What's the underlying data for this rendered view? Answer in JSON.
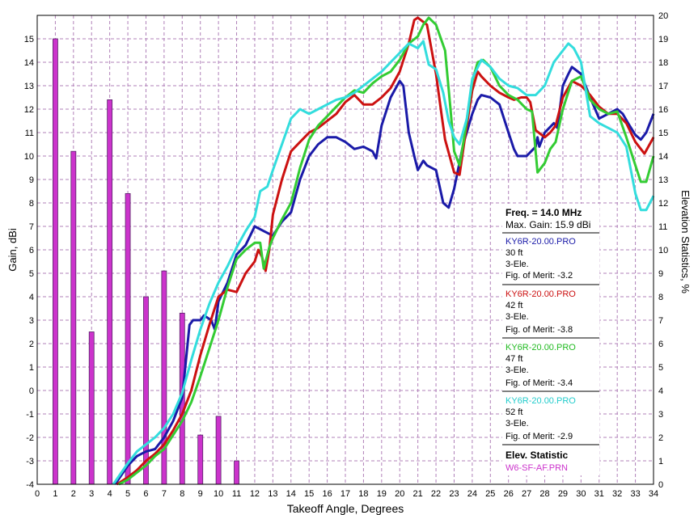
{
  "chart_data": {
    "type": "line",
    "xlabel": "Takeoff Angle, Degrees",
    "ylabel": "Gain, dBi",
    "y2label": "Elevation Statistics, %",
    "xlim": [
      0,
      34
    ],
    "ylim": [
      -4,
      16
    ],
    "y2lim": [
      0,
      20
    ],
    "grid": true,
    "xticks": [
      0,
      1,
      2,
      3,
      4,
      5,
      6,
      7,
      8,
      9,
      10,
      11,
      12,
      13,
      14,
      15,
      16,
      17,
      18,
      19,
      20,
      21,
      22,
      23,
      24,
      25,
      26,
      27,
      28,
      29,
      30,
      31,
      32,
      33,
      34
    ],
    "yticks": [
      -4,
      -3,
      -2,
      -1,
      0,
      1,
      2,
      3,
      4,
      5,
      6,
      7,
      8,
      9,
      10,
      11,
      12,
      13,
      14,
      15
    ],
    "y2ticks": [
      0,
      1,
      2,
      3,
      4,
      5,
      6,
      7,
      8,
      9,
      10,
      11,
      12,
      13,
      14,
      15,
      16,
      17,
      18,
      19,
      20
    ],
    "legend": {
      "freq_label": "Freq. = 14.0 MHz",
      "max_gain_label": "Max. Gain: 15.9 dBi",
      "elev_title": "Elev. Statistic"
    },
    "series": [
      {
        "name": "KY6R-20.00.PRO",
        "color": "#1a1aa8",
        "details": [
          "30 ft",
          "3-Ele.",
          "Fig. of Merit: -3.2"
        ],
        "points": [
          [
            4.3,
            -4.0
          ],
          [
            5,
            -3.2
          ],
          [
            5.5,
            -2.8
          ],
          [
            6,
            -2.6
          ],
          [
            6.5,
            -2.5
          ],
          [
            7,
            -2.0
          ],
          [
            7.5,
            -1.3
          ],
          [
            8,
            -0.3
          ],
          [
            8.4,
            2.8
          ],
          [
            8.6,
            3.0
          ],
          [
            9,
            3.0
          ],
          [
            9.2,
            3.2
          ],
          [
            9.6,
            3.0
          ],
          [
            9.8,
            2.6
          ],
          [
            10,
            3.8
          ],
          [
            10.5,
            4.6
          ],
          [
            11,
            5.8
          ],
          [
            11.5,
            6.2
          ],
          [
            12,
            7.0
          ],
          [
            12.5,
            6.8
          ],
          [
            13,
            6.6
          ],
          [
            13.5,
            7.2
          ],
          [
            14,
            7.6
          ],
          [
            14.5,
            9.0
          ],
          [
            15,
            10.0
          ],
          [
            15.5,
            10.5
          ],
          [
            16,
            10.8
          ],
          [
            16.5,
            10.8
          ],
          [
            17,
            10.6
          ],
          [
            17.5,
            10.3
          ],
          [
            18,
            10.4
          ],
          [
            18.5,
            10.2
          ],
          [
            18.7,
            9.9
          ],
          [
            19,
            11.3
          ],
          [
            19.5,
            12.5
          ],
          [
            20,
            13.2
          ],
          [
            20.2,
            13.0
          ],
          [
            20.5,
            11.0
          ],
          [
            20.8,
            10.0
          ],
          [
            21,
            9.4
          ],
          [
            21.3,
            9.8
          ],
          [
            21.5,
            9.6
          ],
          [
            22,
            9.4
          ],
          [
            22.4,
            8.0
          ],
          [
            22.7,
            7.8
          ],
          [
            23,
            8.6
          ],
          [
            23.5,
            10.5
          ],
          [
            24,
            11.8
          ],
          [
            24.3,
            12.4
          ],
          [
            24.5,
            12.6
          ],
          [
            25,
            12.5
          ],
          [
            25.5,
            12.2
          ],
          [
            26,
            11.0
          ],
          [
            26.3,
            10.3
          ],
          [
            26.5,
            10.0
          ],
          [
            27,
            10.0
          ],
          [
            27.5,
            10.4
          ],
          [
            27.6,
            10.8
          ],
          [
            27.7,
            10.4
          ],
          [
            28,
            11.0
          ],
          [
            28.5,
            11.4
          ],
          [
            28.7,
            11.2
          ],
          [
            29,
            13.0
          ],
          [
            29.3,
            13.5
          ],
          [
            29.5,
            13.8
          ],
          [
            30,
            13.5
          ],
          [
            30.5,
            12.5
          ],
          [
            31,
            11.6
          ],
          [
            31.5,
            11.8
          ],
          [
            32,
            12.0
          ],
          [
            32.3,
            11.8
          ],
          [
            32.6,
            11.4
          ],
          [
            33,
            10.9
          ],
          [
            33.3,
            10.7
          ],
          [
            33.6,
            11.0
          ],
          [
            34,
            11.8
          ]
        ]
      },
      {
        "name": "KY6R-20.00.PRO",
        "color": "#cc1111",
        "details": [
          "42 ft",
          "3-Ele.",
          "Fig. of Merit: -3.8"
        ],
        "points": [
          [
            4.4,
            -4.0
          ],
          [
            5,
            -3.7
          ],
          [
            5.5,
            -3.4
          ],
          [
            6,
            -3.0
          ],
          [
            6.5,
            -2.7
          ],
          [
            7,
            -2.3
          ],
          [
            7.5,
            -1.7
          ],
          [
            8,
            -1.0
          ],
          [
            8.5,
            0.0
          ],
          [
            9,
            1.5
          ],
          [
            9.5,
            2.8
          ],
          [
            10,
            4.0
          ],
          [
            10.5,
            4.3
          ],
          [
            11,
            4.2
          ],
          [
            11.5,
            5.0
          ],
          [
            12,
            5.5
          ],
          [
            12.2,
            6.0
          ],
          [
            12.4,
            5.7
          ],
          [
            12.6,
            5.1
          ],
          [
            12.8,
            6.0
          ],
          [
            13,
            7.5
          ],
          [
            13.5,
            9.0
          ],
          [
            14,
            10.2
          ],
          [
            14.5,
            10.6
          ],
          [
            15,
            11.0
          ],
          [
            15.5,
            11.2
          ],
          [
            16,
            11.5
          ],
          [
            16.5,
            11.8
          ],
          [
            17,
            12.3
          ],
          [
            17.5,
            12.6
          ],
          [
            18,
            12.2
          ],
          [
            18.5,
            12.2
          ],
          [
            19,
            12.5
          ],
          [
            19.5,
            12.9
          ],
          [
            20,
            13.6
          ],
          [
            20.5,
            14.8
          ],
          [
            20.8,
            15.8
          ],
          [
            21,
            15.9
          ],
          [
            21.5,
            15.6
          ],
          [
            22,
            13.5
          ],
          [
            22.3,
            11.8
          ],
          [
            22.5,
            10.7
          ],
          [
            23,
            9.3
          ],
          [
            23.3,
            9.2
          ],
          [
            23.6,
            10.8
          ],
          [
            24,
            12.8
          ],
          [
            24.3,
            13.6
          ],
          [
            24.5,
            13.4
          ],
          [
            25,
            13.0
          ],
          [
            25.5,
            12.7
          ],
          [
            26,
            12.5
          ],
          [
            26.3,
            12.4
          ],
          [
            26.7,
            12.5
          ],
          [
            27,
            12.5
          ],
          [
            27.2,
            12.3
          ],
          [
            27.5,
            11.1
          ],
          [
            28,
            10.8
          ],
          [
            28.3,
            11.0
          ],
          [
            28.6,
            11.3
          ],
          [
            29,
            12.5
          ],
          [
            29.5,
            13.2
          ],
          [
            30,
            13.0
          ],
          [
            30.5,
            12.6
          ],
          [
            31,
            12.1
          ],
          [
            31.5,
            11.8
          ],
          [
            32,
            11.8
          ],
          [
            32.5,
            11.4
          ],
          [
            33,
            10.6
          ],
          [
            33.5,
            10.1
          ],
          [
            34,
            10.8
          ]
        ]
      },
      {
        "name": "KY6R-20.00.PRO",
        "color": "#33cc33",
        "details": [
          "47 ft",
          "3-Ele.",
          "Fig. of Merit: -3.4"
        ],
        "points": [
          [
            4.5,
            -4.0
          ],
          [
            5,
            -3.8
          ],
          [
            5.5,
            -3.5
          ],
          [
            6,
            -3.2
          ],
          [
            6.5,
            -2.8
          ],
          [
            7,
            -2.5
          ],
          [
            7.5,
            -1.9
          ],
          [
            8,
            -1.3
          ],
          [
            8.5,
            -0.5
          ],
          [
            9,
            0.6
          ],
          [
            9.5,
            1.8
          ],
          [
            10,
            3.0
          ],
          [
            10.5,
            4.4
          ],
          [
            11,
            5.6
          ],
          [
            11.5,
            6.0
          ],
          [
            12,
            6.3
          ],
          [
            12.3,
            6.3
          ],
          [
            12.5,
            5.2
          ],
          [
            12.8,
            6.1
          ],
          [
            13,
            6.5
          ],
          [
            13.5,
            7.3
          ],
          [
            14,
            8.0
          ],
          [
            14.5,
            9.5
          ],
          [
            15,
            10.7
          ],
          [
            15.5,
            11.3
          ],
          [
            16,
            11.7
          ],
          [
            16.5,
            12.1
          ],
          [
            17,
            12.5
          ],
          [
            17.5,
            12.8
          ],
          [
            18,
            12.7
          ],
          [
            18.5,
            13.1
          ],
          [
            19,
            13.4
          ],
          [
            19.5,
            13.6
          ],
          [
            20,
            14.1
          ],
          [
            20.5,
            14.8
          ],
          [
            21,
            15.1
          ],
          [
            21.3,
            15.6
          ],
          [
            21.6,
            15.9
          ],
          [
            22,
            15.6
          ],
          [
            22.5,
            14.5
          ],
          [
            22.8,
            12.0
          ],
          [
            23,
            10.2
          ],
          [
            23.3,
            9.6
          ],
          [
            23.6,
            11.0
          ],
          [
            24,
            13.2
          ],
          [
            24.3,
            14.0
          ],
          [
            24.6,
            14.1
          ],
          [
            25,
            13.8
          ],
          [
            25.5,
            13.0
          ],
          [
            26,
            12.6
          ],
          [
            26.5,
            12.4
          ],
          [
            27,
            12.0
          ],
          [
            27.3,
            11.9
          ],
          [
            27.6,
            9.3
          ],
          [
            28,
            9.7
          ],
          [
            28.3,
            10.3
          ],
          [
            28.6,
            10.6
          ],
          [
            29,
            12.0
          ],
          [
            29.5,
            13.2
          ],
          [
            30,
            13.4
          ],
          [
            30.5,
            12.4
          ],
          [
            31,
            12.0
          ],
          [
            31.5,
            11.8
          ],
          [
            32,
            11.9
          ],
          [
            32.5,
            10.8
          ],
          [
            33,
            9.6
          ],
          [
            33.3,
            8.9
          ],
          [
            33.6,
            8.9
          ],
          [
            34,
            10.0
          ]
        ]
      },
      {
        "name": "KY6R-20.00.PRO",
        "color": "#33dddd",
        "details": [
          "52 ft",
          "3-Ele.",
          "Fig. of Merit: -2.9"
        ],
        "points": [
          [
            4.2,
            -4.0
          ],
          [
            5,
            -3.1
          ],
          [
            5.5,
            -2.6
          ],
          [
            6,
            -2.3
          ],
          [
            6.5,
            -2.0
          ],
          [
            7,
            -1.6
          ],
          [
            7.5,
            -1.0
          ],
          [
            8,
            -0.1
          ],
          [
            8.5,
            1.3
          ],
          [
            9,
            2.6
          ],
          [
            9.5,
            3.7
          ],
          [
            10,
            4.6
          ],
          [
            10.5,
            5.3
          ],
          [
            11,
            6.1
          ],
          [
            11.5,
            6.8
          ],
          [
            12,
            7.4
          ],
          [
            12.3,
            8.5
          ],
          [
            12.7,
            8.7
          ],
          [
            13,
            9.4
          ],
          [
            13.5,
            10.5
          ],
          [
            14,
            11.6
          ],
          [
            14.5,
            12.0
          ],
          [
            15,
            11.8
          ],
          [
            15.5,
            12.0
          ],
          [
            16,
            12.2
          ],
          [
            16.5,
            12.4
          ],
          [
            17,
            12.5
          ],
          [
            17.5,
            12.7
          ],
          [
            18,
            13.0
          ],
          [
            18.5,
            13.3
          ],
          [
            19,
            13.6
          ],
          [
            19.5,
            14.0
          ],
          [
            20,
            14.4
          ],
          [
            20.5,
            14.8
          ],
          [
            21,
            14.6
          ],
          [
            21.3,
            14.9
          ],
          [
            21.6,
            13.9
          ],
          [
            22,
            13.7
          ],
          [
            22.4,
            12.7
          ],
          [
            22.7,
            11.5
          ],
          [
            23,
            10.8
          ],
          [
            23.3,
            10.5
          ],
          [
            23.7,
            11.6
          ],
          [
            24,
            13.3
          ],
          [
            24.5,
            14.1
          ],
          [
            25,
            13.8
          ],
          [
            25.5,
            13.3
          ],
          [
            26,
            13.0
          ],
          [
            26.5,
            12.9
          ],
          [
            27,
            12.6
          ],
          [
            27.5,
            12.6
          ],
          [
            28,
            13.0
          ],
          [
            28.5,
            14.0
          ],
          [
            29,
            14.5
          ],
          [
            29.3,
            14.8
          ],
          [
            29.6,
            14.6
          ],
          [
            30,
            14.0
          ],
          [
            30.5,
            11.7
          ],
          [
            31,
            11.4
          ],
          [
            31.5,
            11.2
          ],
          [
            32,
            11.0
          ],
          [
            32.5,
            10.4
          ],
          [
            33,
            8.4
          ],
          [
            33.3,
            7.7
          ],
          [
            33.6,
            7.7
          ],
          [
            34,
            8.3
          ]
        ]
      }
    ],
    "statistic": {
      "name": "W6-SF-AF.PRN",
      "color": "#cc33cc",
      "x": [
        1,
        2,
        3,
        4,
        5,
        6,
        7,
        8,
        9,
        10,
        11
      ],
      "values": [
        19.0,
        14.2,
        6.5,
        16.4,
        12.4,
        8.0,
        9.1,
        7.3,
        2.1,
        2.9,
        1.0
      ]
    }
  }
}
